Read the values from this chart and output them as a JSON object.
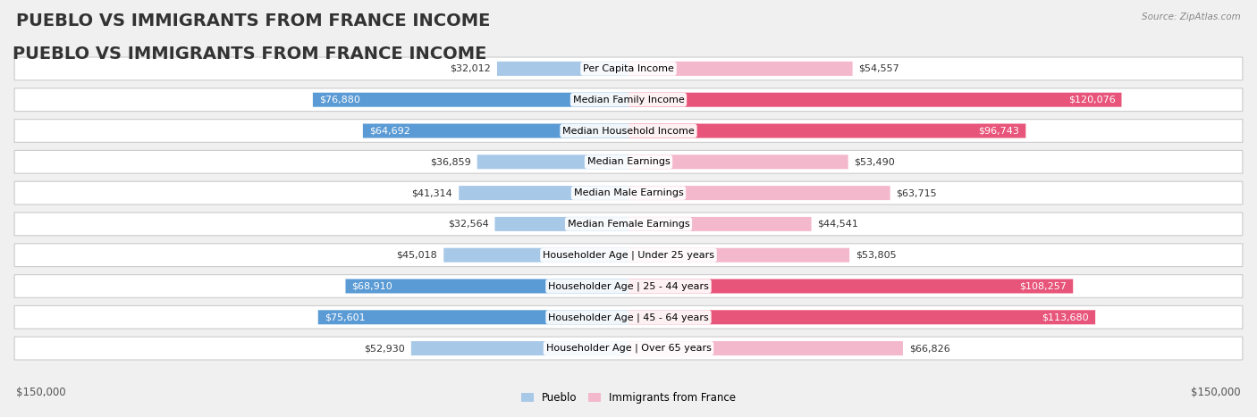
{
  "title": "PUEBLO VS IMMIGRANTS FROM FRANCE INCOME",
  "source": "Source: ZipAtlas.com",
  "categories": [
    "Per Capita Income",
    "Median Family Income",
    "Median Household Income",
    "Median Earnings",
    "Median Male Earnings",
    "Median Female Earnings",
    "Householder Age | Under 25 years",
    "Householder Age | 25 - 44 years",
    "Householder Age | 45 - 64 years",
    "Householder Age | Over 65 years"
  ],
  "pueblo_values": [
    32012,
    76880,
    64692,
    36859,
    41314,
    32564,
    45018,
    68910,
    75601,
    52930
  ],
  "france_values": [
    54557,
    120076,
    96743,
    53490,
    63715,
    44541,
    53805,
    108257,
    113680,
    66826
  ],
  "pueblo_labels": [
    "$32,012",
    "$76,880",
    "$64,692",
    "$36,859",
    "$41,314",
    "$32,564",
    "$45,018",
    "$68,910",
    "$75,601",
    "$52,930"
  ],
  "france_labels": [
    "$54,557",
    "$120,076",
    "$96,743",
    "$53,490",
    "$63,715",
    "$44,541",
    "$53,805",
    "$108,257",
    "$113,680",
    "$66,826"
  ],
  "pueblo_color_light": "#a8c8e8",
  "pueblo_color_dark": "#5b9bd5",
  "france_color_light": "#f4b8cc",
  "france_color_dark": "#e8557a",
  "max_value": 150000,
  "xlabel_left": "$150,000",
  "xlabel_right": "$150,000",
  "legend_pueblo": "Pueblo",
  "legend_france": "Immigrants from France",
  "bg_color": "#f0f0f0",
  "row_bg_color": "#e8e8e8",
  "title_fontsize": 14,
  "label_fontsize": 8,
  "category_fontsize": 8
}
